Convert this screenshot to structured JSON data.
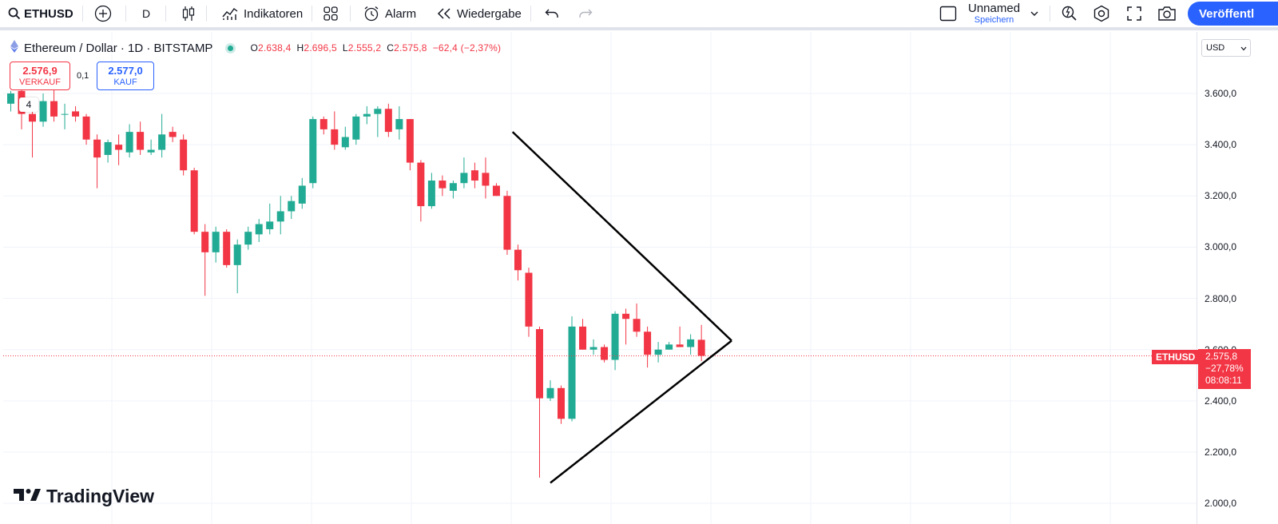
{
  "toolbar": {
    "symbol": "ETHUSD",
    "interval": "D",
    "indicators_label": "Indikatoren",
    "alert_label": "Alarm",
    "replay_label": "Wiedergabe",
    "layout_name": "Unnamed",
    "layout_status": "Speichern",
    "publish_label": "Veröffentl"
  },
  "legend": {
    "title": "Ethereum / Dollar · 1D · BITSTAMP",
    "ohlc": {
      "o_key": "O",
      "o_val": "2.638,4",
      "h_key": "H",
      "h_val": "2.696,5",
      "l_key": "L",
      "l_val": "2.555,2",
      "c_key": "C",
      "c_val": "2.575,8",
      "change": "−62,4 (−2,37%)"
    }
  },
  "trade": {
    "sell_price": "2.576,9",
    "sell_label": "VERKAUF",
    "spread": "0,1",
    "buy_price": "2.577,0",
    "buy_label": "KAUF"
  },
  "hidden_indicators": "4",
  "price_scale": {
    "currency": "USD",
    "current_symbol": "ETHUSD",
    "current_price": "2.575,8",
    "current_change": "−27,78%",
    "countdown": "08:08:11"
  },
  "watermark": "TradingView",
  "colors": {
    "up": "#22ab94",
    "down": "#f23645",
    "accent": "#2962ff",
    "grid": "#f0f3fa",
    "drawing": "#000000"
  },
  "chart_data": {
    "type": "candlestick",
    "ylim": [
      2000,
      3760
    ],
    "y_ticks": [
      2000,
      2200,
      2400,
      2600,
      2800,
      3000,
      3200,
      3400,
      3600
    ],
    "y_tick_labels": [
      "2.000,0",
      "2.200,0",
      "2.400,0",
      "2.600,0",
      "2.800,0",
      "3.000,0",
      "3.200,0",
      "3.400,0",
      "3.600,0"
    ],
    "last_price": 2575.8,
    "candles": [
      {
        "o": 3560,
        "h": 3610,
        "l": 3530,
        "c": 3600
      },
      {
        "o": 3610,
        "h": 3640,
        "l": 3460,
        "c": 3520
      },
      {
        "o": 3520,
        "h": 3580,
        "l": 3350,
        "c": 3490
      },
      {
        "o": 3490,
        "h": 3600,
        "l": 3470,
        "c": 3570
      },
      {
        "o": 3570,
        "h": 3650,
        "l": 3490,
        "c": 3510
      },
      {
        "o": 3520,
        "h": 3560,
        "l": 3460,
        "c": 3520
      },
      {
        "o": 3530,
        "h": 3550,
        "l": 3490,
        "c": 3510
      },
      {
        "o": 3510,
        "h": 3520,
        "l": 3400,
        "c": 3420
      },
      {
        "o": 3420,
        "h": 3440,
        "l": 3230,
        "c": 3350
      },
      {
        "o": 3360,
        "h": 3420,
        "l": 3330,
        "c": 3410
      },
      {
        "o": 3400,
        "h": 3440,
        "l": 3320,
        "c": 3380
      },
      {
        "o": 3370,
        "h": 3480,
        "l": 3350,
        "c": 3450
      },
      {
        "o": 3450,
        "h": 3490,
        "l": 3360,
        "c": 3380
      },
      {
        "o": 3370,
        "h": 3420,
        "l": 3360,
        "c": 3380
      },
      {
        "o": 3380,
        "h": 3520,
        "l": 3350,
        "c": 3440
      },
      {
        "o": 3450,
        "h": 3470,
        "l": 3410,
        "c": 3430
      },
      {
        "o": 3420,
        "h": 3440,
        "l": 3280,
        "c": 3300
      },
      {
        "o": 3300,
        "h": 3310,
        "l": 3050,
        "c": 3060
      },
      {
        "o": 3060,
        "h": 3090,
        "l": 2810,
        "c": 2980
      },
      {
        "o": 2980,
        "h": 3080,
        "l": 2940,
        "c": 3060
      },
      {
        "o": 3060,
        "h": 3070,
        "l": 2920,
        "c": 2930
      },
      {
        "o": 2930,
        "h": 3030,
        "l": 2820,
        "c": 3010
      },
      {
        "o": 3010,
        "h": 3080,
        "l": 2990,
        "c": 3060
      },
      {
        "o": 3050,
        "h": 3110,
        "l": 3020,
        "c": 3090
      },
      {
        "o": 3070,
        "h": 3170,
        "l": 3050,
        "c": 3100
      },
      {
        "o": 3100,
        "h": 3200,
        "l": 3050,
        "c": 3140
      },
      {
        "o": 3140,
        "h": 3200,
        "l": 3110,
        "c": 3180
      },
      {
        "o": 3170,
        "h": 3270,
        "l": 3150,
        "c": 3240
      },
      {
        "o": 3250,
        "h": 3510,
        "l": 3230,
        "c": 3500
      },
      {
        "o": 3500,
        "h": 3510,
        "l": 3440,
        "c": 3460
      },
      {
        "o": 3460,
        "h": 3530,
        "l": 3380,
        "c": 3400
      },
      {
        "o": 3390,
        "h": 3470,
        "l": 3380,
        "c": 3430
      },
      {
        "o": 3420,
        "h": 3520,
        "l": 3400,
        "c": 3510
      },
      {
        "o": 3510,
        "h": 3550,
        "l": 3480,
        "c": 3520
      },
      {
        "o": 3520,
        "h": 3550,
        "l": 3430,
        "c": 3540
      },
      {
        "o": 3540,
        "h": 3560,
        "l": 3430,
        "c": 3450
      },
      {
        "o": 3460,
        "h": 3550,
        "l": 3420,
        "c": 3500
      },
      {
        "o": 3500,
        "h": 3500,
        "l": 3300,
        "c": 3330
      },
      {
        "o": 3330,
        "h": 3340,
        "l": 3100,
        "c": 3160
      },
      {
        "o": 3160,
        "h": 3290,
        "l": 3150,
        "c": 3260
      },
      {
        "o": 3260,
        "h": 3280,
        "l": 3200,
        "c": 3230
      },
      {
        "o": 3220,
        "h": 3260,
        "l": 3190,
        "c": 3250
      },
      {
        "o": 3250,
        "h": 3350,
        "l": 3230,
        "c": 3290
      },
      {
        "o": 3300,
        "h": 3330,
        "l": 3230,
        "c": 3260
      },
      {
        "o": 3290,
        "h": 3350,
        "l": 3190,
        "c": 3240
      },
      {
        "o": 3240,
        "h": 3250,
        "l": 3200,
        "c": 3200
      },
      {
        "o": 3200,
        "h": 3220,
        "l": 2970,
        "c": 2990
      },
      {
        "o": 2990,
        "h": 3010,
        "l": 2870,
        "c": 2910
      },
      {
        "o": 2900,
        "h": 2920,
        "l": 2650,
        "c": 2690
      },
      {
        "o": 2680,
        "h": 2690,
        "l": 2100,
        "c": 2410
      },
      {
        "o": 2410,
        "h": 2480,
        "l": 2400,
        "c": 2450
      },
      {
        "o": 2450,
        "h": 2460,
        "l": 2310,
        "c": 2330
      },
      {
        "o": 2330,
        "h": 2730,
        "l": 2320,
        "c": 2690
      },
      {
        "o": 2690,
        "h": 2720,
        "l": 2600,
        "c": 2600
      },
      {
        "o": 2600,
        "h": 2640,
        "l": 2580,
        "c": 2610
      },
      {
        "o": 2610,
        "h": 2620,
        "l": 2550,
        "c": 2560
      },
      {
        "o": 2560,
        "h": 2750,
        "l": 2520,
        "c": 2740
      },
      {
        "o": 2740,
        "h": 2760,
        "l": 2620,
        "c": 2720
      },
      {
        "o": 2720,
        "h": 2780,
        "l": 2650,
        "c": 2670
      },
      {
        "o": 2670,
        "h": 2690,
        "l": 2530,
        "c": 2580
      },
      {
        "o": 2580,
        "h": 2630,
        "l": 2550,
        "c": 2600
      },
      {
        "o": 2600,
        "h": 2630,
        "l": 2600,
        "c": 2620
      },
      {
        "o": 2620,
        "h": 2690,
        "l": 2610,
        "c": 2610
      },
      {
        "o": 2610,
        "h": 2660,
        "l": 2580,
        "c": 2640
      },
      {
        "o": 2638.4,
        "h": 2696.5,
        "l": 2555.2,
        "c": 2575.8
      }
    ],
    "triangle": {
      "upper_start": {
        "index": 46.5,
        "price": 3450
      },
      "lower_start": {
        "index": 50.0,
        "price": 2080
      },
      "apex": {
        "index": 66.8,
        "price": 2635
      }
    }
  }
}
